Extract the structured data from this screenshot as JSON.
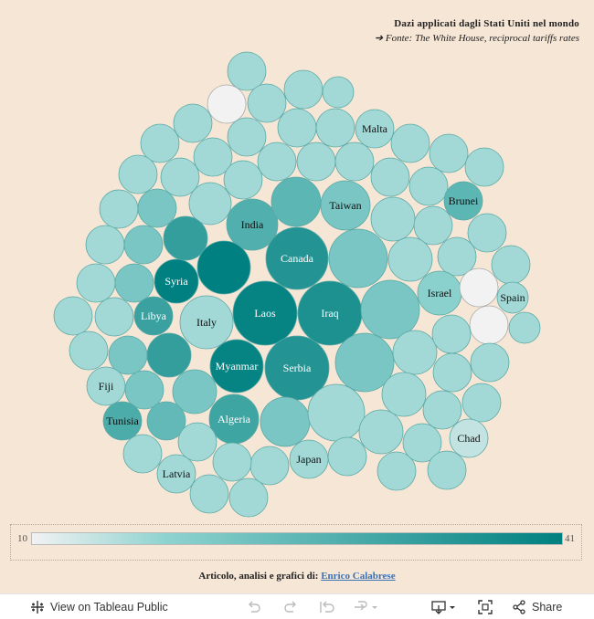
{
  "header": {
    "title": "Dazi applicati dagli Stati Uniti nel mondo",
    "source": "➔ Fonte:  The White House, reciprocal tariffs rates"
  },
  "legend": {
    "min": "10",
    "max": "41"
  },
  "colors": {
    "low": "#f2f2f2",
    "mid": "#8fd3d0",
    "high": "#008080",
    "stroke": "#5aa8a4",
    "bg": "#f6e6d6"
  },
  "credit": {
    "prefix": "Articolo, analisi e grafici di:",
    "author": "Enrico Calabrese"
  },
  "toolbar": {
    "view_label": "View on Tableau Public",
    "share_label": "Share"
  },
  "chart_data": {
    "type": "packed-bubble",
    "title": "Dazi applicati dagli Stati Uniti nel mondo",
    "color_range": [
      10,
      41
    ],
    "labeled_countries": [
      "Malta",
      "India",
      "Brunei",
      "Taiwan",
      "Canada",
      "Israel",
      "Spain",
      "Libya",
      "Syria",
      "Laos",
      "Iraq",
      "Italy",
      "Myanmar",
      "Serbia",
      "Fiji",
      "Algeria",
      "Tunisia",
      "Chad",
      "Japan",
      "Latvia"
    ],
    "bubbles": [
      {
        "label": "",
        "v": 15
      },
      {
        "label": "",
        "v": 15
      },
      {
        "label": "",
        "v": 15
      },
      {
        "label": "",
        "v": 10
      },
      {
        "label": "",
        "v": 15
      },
      {
        "label": "",
        "v": 15
      },
      {
        "label": "",
        "v": 15
      },
      {
        "label": "",
        "v": 15
      },
      {
        "label": "Malta",
        "v": 15
      },
      {
        "label": "",
        "v": 15
      },
      {
        "label": "",
        "v": 15
      },
      {
        "label": "",
        "v": 15
      },
      {
        "label": "",
        "v": 15
      },
      {
        "label": "",
        "v": 15
      },
      {
        "label": "",
        "v": 15
      },
      {
        "label": "",
        "v": 15
      },
      {
        "label": "",
        "v": 15
      },
      {
        "label": "",
        "v": 15
      },
      {
        "label": "",
        "v": 15
      },
      {
        "label": "",
        "v": 15
      },
      {
        "label": "",
        "v": 15
      },
      {
        "label": "",
        "v": 15
      },
      {
        "label": "",
        "v": 15
      },
      {
        "label": "",
        "v": 15
      },
      {
        "label": "",
        "v": 20
      },
      {
        "label": "",
        "v": 15
      },
      {
        "label": "Brunei",
        "v": 25
      },
      {
        "label": "India",
        "v": 27
      },
      {
        "label": "",
        "v": 25
      },
      {
        "label": "Taiwan",
        "v": 20
      },
      {
        "label": "",
        "v": 15
      },
      {
        "label": "",
        "v": 15
      },
      {
        "label": "",
        "v": 15
      },
      {
        "label": "",
        "v": 15
      },
      {
        "label": "",
        "v": 20
      },
      {
        "label": "",
        "v": 32
      },
      {
        "label": "",
        "v": 41
      },
      {
        "label": "Canada",
        "v": 35
      },
      {
        "label": "",
        "v": 20
      },
      {
        "label": "",
        "v": 15
      },
      {
        "label": "",
        "v": 15
      },
      {
        "label": "",
        "v": 15
      },
      {
        "label": "",
        "v": 15
      },
      {
        "label": "",
        "v": 20
      },
      {
        "label": "Syria",
        "v": 41
      },
      {
        "label": "Laos",
        "v": 40
      },
      {
        "label": "Iraq",
        "v": 36
      },
      {
        "label": "",
        "v": 20
      },
      {
        "label": "Israel",
        "v": 17
      },
      {
        "label": "",
        "v": 10
      },
      {
        "label": "Spain",
        "v": 15
      },
      {
        "label": "",
        "v": 15
      },
      {
        "label": "",
        "v": 15
      },
      {
        "label": "Libya",
        "v": 31
      },
      {
        "label": "Italy",
        "v": 15
      },
      {
        "label": "",
        "v": 10
      },
      {
        "label": "",
        "v": 15
      },
      {
        "label": "",
        "v": 15
      },
      {
        "label": "",
        "v": 20
      },
      {
        "label": "",
        "v": 32
      },
      {
        "label": "Myanmar",
        "v": 40
      },
      {
        "label": "Serbia",
        "v": 35
      },
      {
        "label": "",
        "v": 20
      },
      {
        "label": "",
        "v": 15
      },
      {
        "label": "",
        "v": 15
      },
      {
        "label": "",
        "v": 15
      },
      {
        "label": "Fiji",
        "v": 15
      },
      {
        "label": "",
        "v": 20
      },
      {
        "label": "",
        "v": 20
      },
      {
        "label": "",
        "v": 15
      },
      {
        "label": "",
        "v": 15
      },
      {
        "label": "",
        "v": 15
      },
      {
        "label": "Tunisia",
        "v": 28
      },
      {
        "label": "",
        "v": 24
      },
      {
        "label": "Algeria",
        "v": 30
      },
      {
        "label": "",
        "v": 20
      },
      {
        "label": "",
        "v": 15
      },
      {
        "label": "",
        "v": 15
      },
      {
        "label": "",
        "v": 15
      },
      {
        "label": "",
        "v": 15
      },
      {
        "label": "",
        "v": 15
      },
      {
        "label": "Chad",
        "v": 13
      },
      {
        "label": "",
        "v": 15
      },
      {
        "label": "",
        "v": 15
      },
      {
        "label": "Japan",
        "v": 15
      },
      {
        "label": "",
        "v": 15
      },
      {
        "label": "",
        "v": 15
      },
      {
        "label": "",
        "v": 15
      },
      {
        "label": "",
        "v": 15
      },
      {
        "label": "Latvia",
        "v": 15
      },
      {
        "label": "",
        "v": 15
      },
      {
        "label": "",
        "v": 15
      }
    ]
  }
}
